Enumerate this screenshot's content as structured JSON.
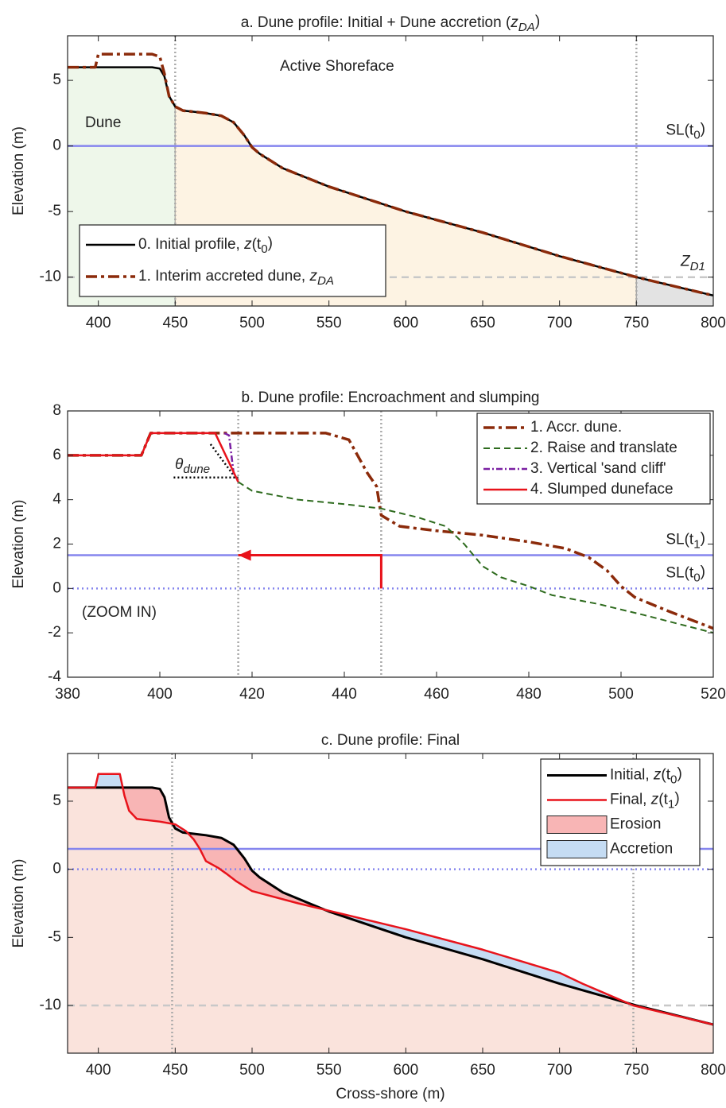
{
  "chart_data": [
    {
      "type": "line",
      "title": [
        [
          "a. Dune profile: Initial + Dune accretion (",
          ""
        ],
        [
          "z",
          "i"
        ],
        [
          "DA",
          "isub"
        ],
        [
          ")",
          ""
        ]
      ],
      "ylabel": "Elevation (m)",
      "xlim": [
        380,
        800
      ],
      "ylim": [
        -12.2,
        8.4
      ],
      "xticks": [
        400,
        450,
        500,
        550,
        600,
        650,
        700,
        750,
        800
      ],
      "yticks": [
        -10,
        -5,
        0,
        5
      ],
      "legend": "lower left",
      "zones": [
        {
          "from": 380,
          "to": 450,
          "color": "#eef7ea"
        },
        {
          "from": 450,
          "to": 750,
          "color": "#fdf3e3"
        },
        {
          "from": 750,
          "to": 800,
          "color": "#e3e3e3"
        }
      ],
      "hlines": [
        {
          "value": 0,
          "color": "#8585ee",
          "dash": "",
          "label": [
            [
              "SL(t",
              ""
            ],
            [
              "0",
              "sub"
            ],
            [
              ")",
              ""
            ]
          ],
          "label_color": "#2020d0"
        },
        {
          "value": -10,
          "color": "#c8c8c8",
          "dash": "9 6",
          "label": [
            [
              "Z",
              "i"
            ],
            [
              "D1",
              "isub"
            ]
          ],
          "label_color": "#a0a0a0"
        }
      ],
      "vlines": [
        450,
        750
      ],
      "annotations": [
        "Dune",
        "Active Shoreface"
      ],
      "series": [
        {
          "name": [
            [
              "0. Initial profile, ",
              ""
            ],
            [
              "z",
              "i"
            ],
            [
              "(t",
              ""
            ],
            [
              "0",
              "sub"
            ],
            [
              ")",
              ""
            ]
          ],
          "color": "#000000",
          "dash": "",
          "width": 2.5,
          "x": [
            380,
            435,
            440,
            443,
            446,
            450,
            455,
            470,
            480,
            488,
            495,
            500,
            505,
            520,
            550,
            600,
            650,
            700,
            750,
            800
          ],
          "values": [
            6,
            6,
            5.9,
            5.3,
            3.8,
            3.0,
            2.7,
            2.5,
            2.3,
            1.8,
            0.8,
            -0.1,
            -0.6,
            -1.7,
            -3.1,
            -5.0,
            -6.6,
            -8.4,
            -10,
            -11.4
          ]
        },
        {
          "name": [
            [
              "1. Interim accreted dune, ",
              ""
            ],
            [
              "z",
              "i"
            ],
            [
              "DA",
              "isub"
            ]
          ],
          "color": "#8b2a0a",
          "dash": "14 5 4 5",
          "width": 3.5,
          "x": [
            380,
            398,
            400,
            435,
            440,
            443,
            446,
            450,
            455,
            470,
            480,
            488,
            495,
            500,
            505,
            520,
            550,
            600,
            650,
            700,
            750,
            800
          ],
          "values": [
            6,
            6,
            7,
            7,
            6.8,
            5.5,
            3.8,
            3.0,
            2.7,
            2.5,
            2.3,
            1.8,
            0.8,
            -0.1,
            -0.6,
            -1.7,
            -3.1,
            -5.0,
            -6.6,
            -8.4,
            -10,
            -11.4
          ]
        }
      ]
    },
    {
      "type": "line",
      "title": [
        [
          "b. Dune profile: Encroachment and slumping",
          ""
        ]
      ],
      "ylabel": "Elevation (m)",
      "xlim": [
        380,
        520
      ],
      "ylim": [
        -4,
        8
      ],
      "xticks": [
        380,
        400,
        420,
        440,
        460,
        480,
        500,
        520
      ],
      "yticks": [
        -4,
        -2,
        0,
        2,
        4,
        6,
        8
      ],
      "legend": "upper right",
      "hlines": [
        {
          "value": 1.5,
          "color": "#8585ee",
          "dash": "",
          "label": [
            [
              "SL(t",
              ""
            ],
            [
              "1",
              "sub"
            ],
            [
              ")",
              ""
            ]
          ],
          "label_color": "#2020d0"
        },
        {
          "value": 0,
          "color": "#8585ee",
          "dash": "2 4",
          "label": [
            [
              "SL(t",
              ""
            ],
            [
              "0",
              "sub"
            ],
            [
              ")",
              ""
            ]
          ],
          "label_color": "#2020d0"
        }
      ],
      "vlines": [
        417,
        448
      ],
      "annotations": [
        "(ZOOM IN)",
        [
          [
            "θ",
            "i"
          ],
          [
            "dune",
            "isub"
          ]
        ]
      ],
      "arrow": {
        "x": [
          448,
          448,
          417
        ],
        "values": [
          0,
          1.5,
          1.5
        ],
        "color": "#e8131b"
      },
      "guides": [
        {
          "x": [
            403,
            417
          ],
          "values": [
            5,
            5
          ]
        },
        {
          "x": [
            411,
            416
          ],
          "values": [
            6.5,
            5.1
          ]
        }
      ],
      "series": [
        {
          "name": [
            [
              "1. Accr. dune.",
              ""
            ]
          ],
          "color": "#8b2a0a",
          "dash": "14 5 4 5",
          "width": 3.5,
          "x": [
            380,
            396,
            398,
            436,
            441,
            445,
            447,
            448,
            452,
            460,
            470,
            480,
            488,
            493,
            497,
            500,
            503,
            510,
            520
          ],
          "values": [
            6,
            6,
            7,
            7,
            6.7,
            5.2,
            4.6,
            3.3,
            2.8,
            2.6,
            2.4,
            2.1,
            1.8,
            1.4,
            0.8,
            0.1,
            -0.4,
            -1.0,
            -1.8
          ]
        },
        {
          "name": [
            [
              "2. Raise and translate",
              ""
            ]
          ],
          "color": "#2e6b1e",
          "dash": "8 5",
          "width": 2,
          "x": [
            417,
            420,
            430,
            440,
            448,
            456,
            462,
            466,
            470,
            474,
            480,
            485,
            495,
            505,
            520
          ],
          "values": [
            4.8,
            4.4,
            4.0,
            3.8,
            3.6,
            3.2,
            2.8,
            2.0,
            1.0,
            0.5,
            0.1,
            -0.3,
            -0.7,
            -1.2,
            -2.0
          ]
        },
        {
          "name": [
            [
              "3. Vertical 'sand cliff'",
              ""
            ]
          ],
          "color": "#7a1fa2",
          "dash": "8 3 2 3",
          "width": 2.5,
          "x": [
            414,
            415,
            416,
            417
          ],
          "values": [
            7,
            6.9,
            5.2,
            4.8
          ]
        },
        {
          "name": [
            [
              "4. Slumped duneface",
              ""
            ]
          ],
          "color": "#e8131b",
          "dash": "",
          "width": 2.5,
          "x": [
            380,
            396,
            398,
            412,
            417
          ],
          "values": [
            6,
            6,
            7,
            7,
            4.8
          ]
        }
      ]
    },
    {
      "type": "line",
      "title": [
        [
          "c. Dune profile: Final",
          ""
        ]
      ],
      "xlabel": "Cross-shore (m)",
      "ylabel": "Elevation (m)",
      "xlim": [
        380,
        800
      ],
      "ylim": [
        -13.5,
        8.5
      ],
      "xticks": [
        400,
        450,
        500,
        550,
        600,
        650,
        700,
        750,
        800
      ],
      "yticks": [
        -10,
        -5,
        0,
        5
      ],
      "legend": "upper right",
      "under_color": "#fae3dc",
      "fills": [
        {
          "name": "Erosion",
          "color": "#f8b5b5"
        },
        {
          "name": "Accretion",
          "color": "#c5dcf3"
        }
      ],
      "hlines": [
        {
          "value": 1.5,
          "color": "#8585ee",
          "dash": ""
        },
        {
          "value": 0,
          "color": "#8585ee",
          "dash": "2 4"
        },
        {
          "value": -10,
          "color": "#c8c8c8",
          "dash": "9 6"
        }
      ],
      "vlines": [
        448,
        748
      ],
      "series": [
        {
          "name": [
            [
              "Initial, ",
              ""
            ],
            [
              "z",
              "i"
            ],
            [
              "(t",
              ""
            ],
            [
              "0",
              "sub"
            ],
            [
              ")",
              ""
            ]
          ],
          "color": "#000000",
          "dash": "",
          "width": 3,
          "x": [
            380,
            435,
            440,
            443,
            446,
            450,
            455,
            470,
            480,
            488,
            495,
            500,
            505,
            520,
            550,
            600,
            650,
            700,
            750,
            800
          ],
          "values": [
            6,
            6,
            5.9,
            5.3,
            3.8,
            3.0,
            2.7,
            2.5,
            2.3,
            1.8,
            0.8,
            -0.1,
            -0.6,
            -1.7,
            -3.1,
            -5.0,
            -6.6,
            -8.4,
            -10,
            -11.4
          ]
        },
        {
          "name": [
            [
              "Final, ",
              ""
            ],
            [
              "z",
              "i"
            ],
            [
              "(t",
              ""
            ],
            [
              "1",
              "sub"
            ],
            [
              ")",
              ""
            ]
          ],
          "color": "#e8131b",
          "dash": "",
          "width": 2.5,
          "x": [
            380,
            398,
            400,
            414,
            417,
            420,
            425,
            440,
            450,
            457,
            462,
            466,
            470,
            478,
            483,
            490,
            500,
            530,
            600,
            650,
            700,
            715,
            748,
            800
          ],
          "values": [
            6,
            6,
            7,
            7,
            5.4,
            4.3,
            3.7,
            3.5,
            3.3,
            2.8,
            2.2,
            1.5,
            0.6,
            0.1,
            -0.3,
            -0.9,
            -1.6,
            -2.5,
            -4.4,
            -5.9,
            -7.6,
            -8.4,
            -10,
            -11.4
          ]
        }
      ]
    }
  ]
}
